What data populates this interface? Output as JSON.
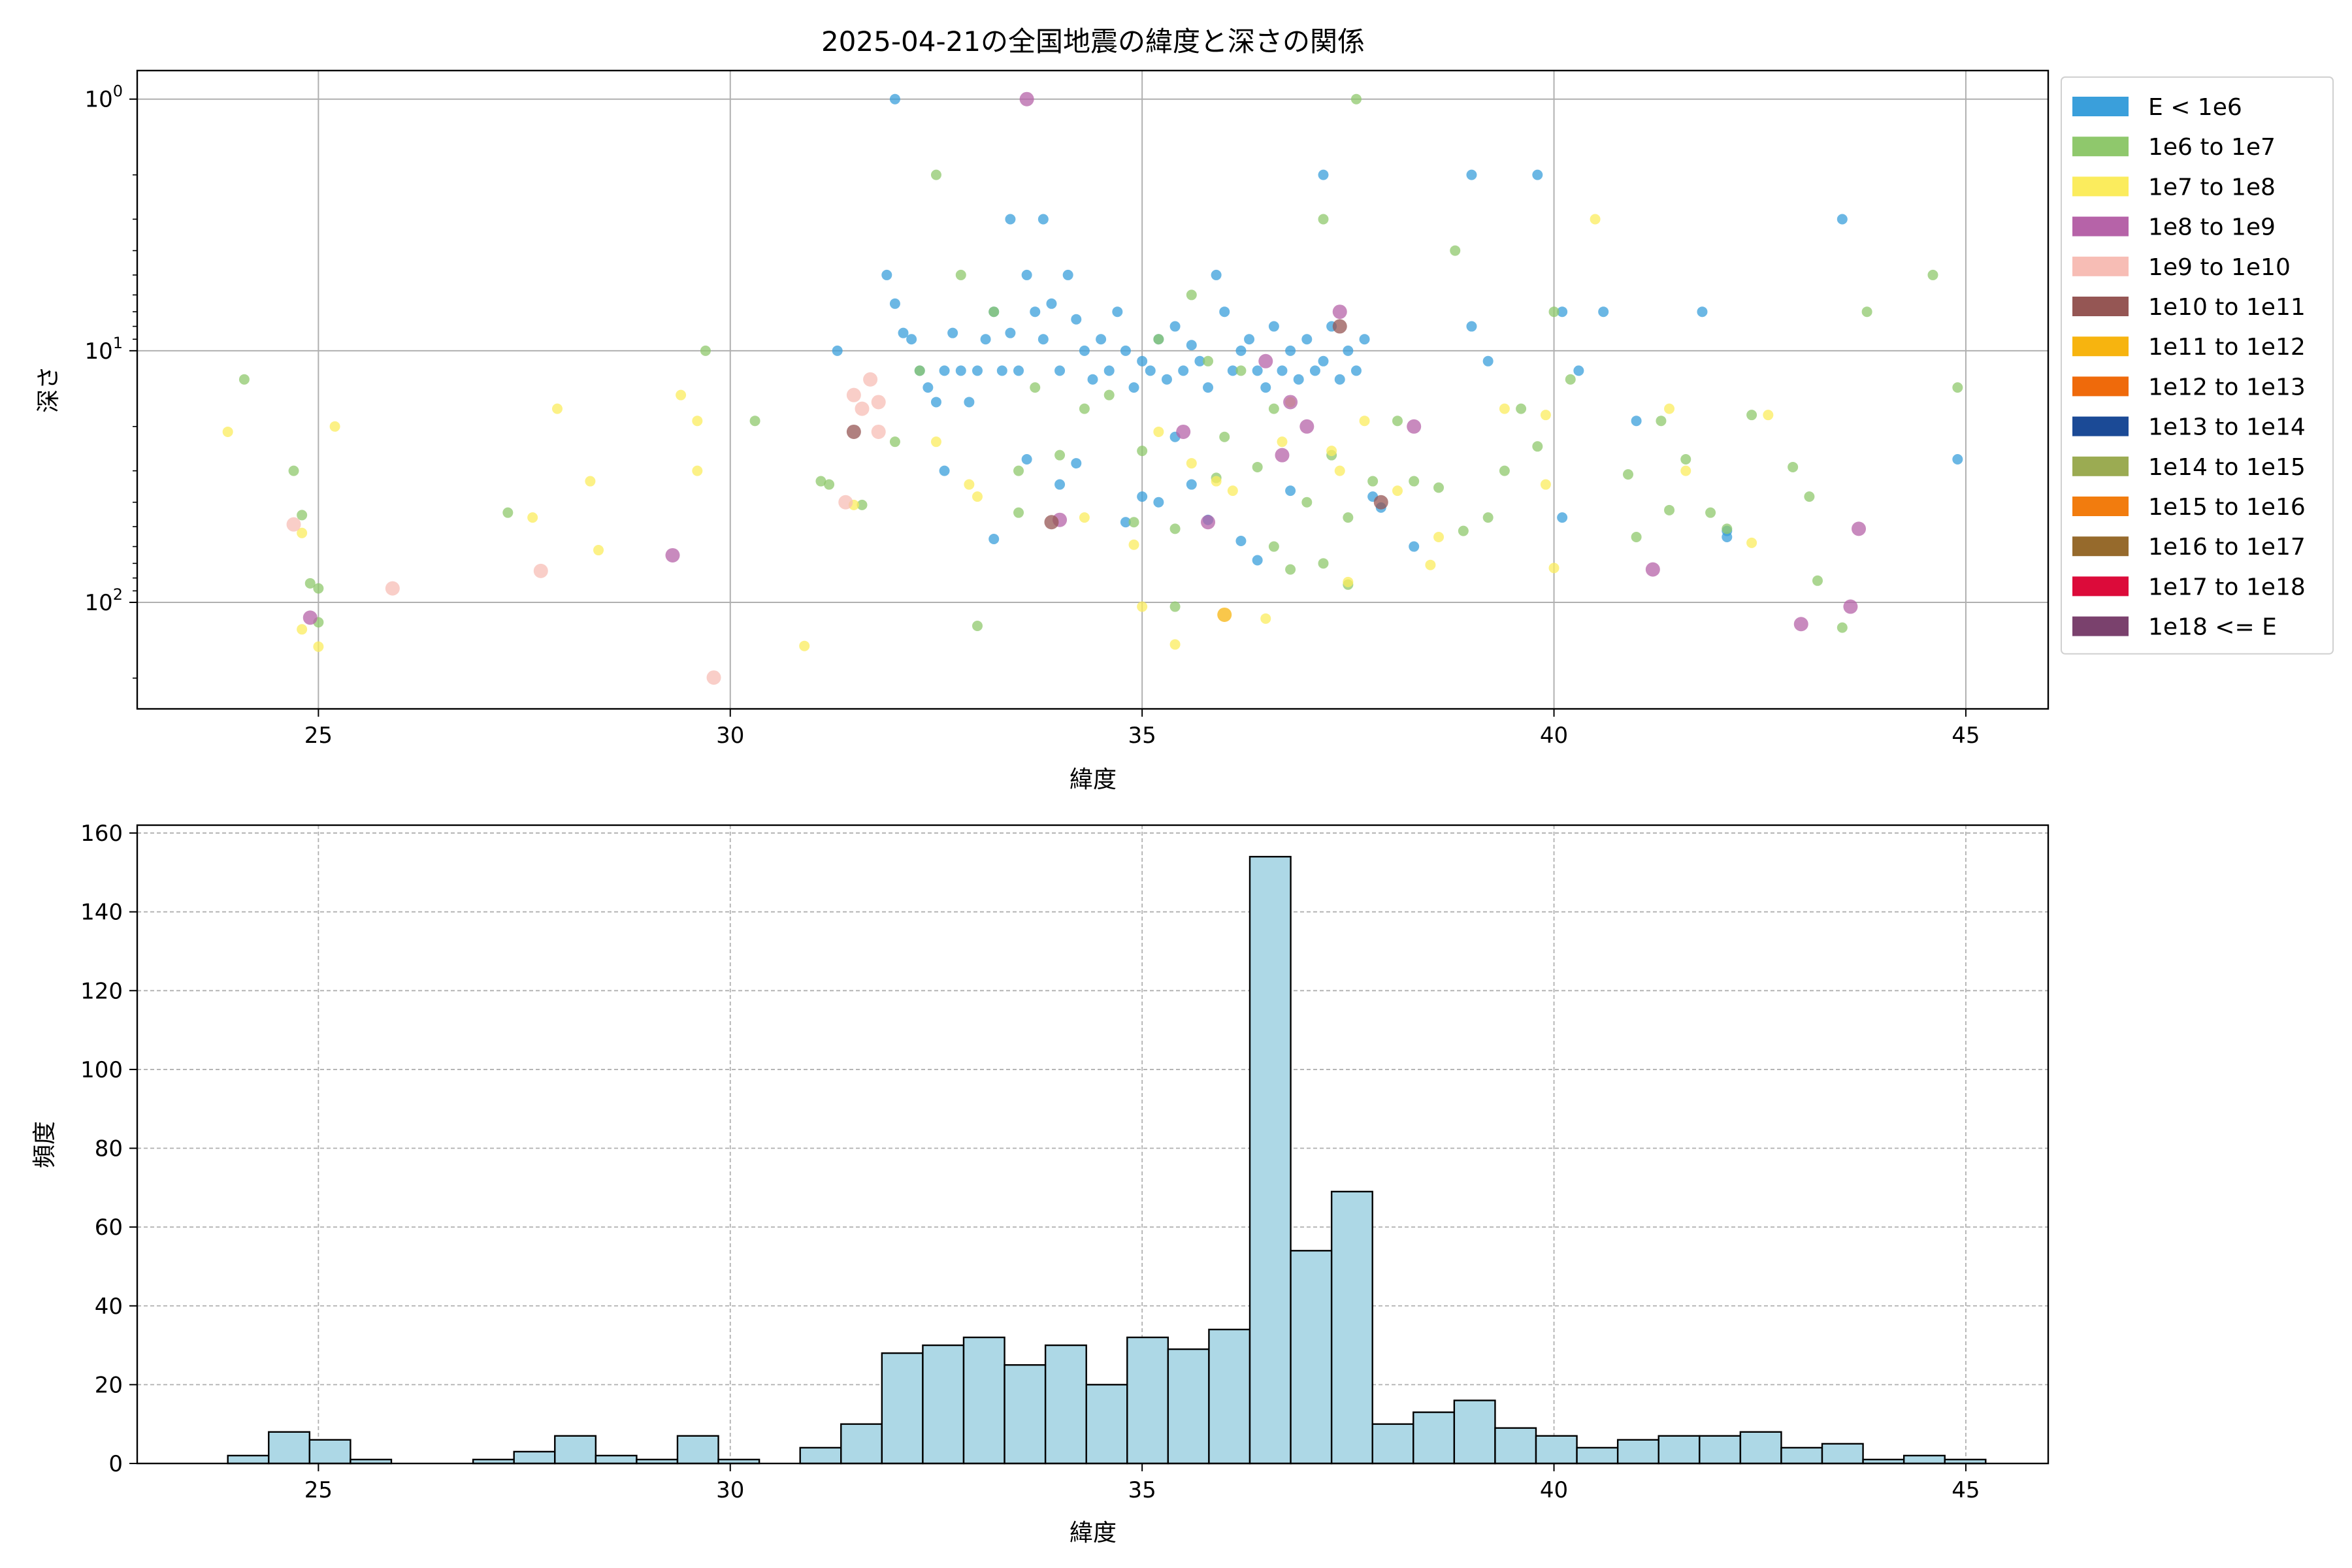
{
  "chart_data": [
    {
      "type": "scatter",
      "title": "2025-04-21の全国地震の緯度と深さの関係",
      "xlabel": "緯度",
      "ylabel": "深さ",
      "xlim": [
        22.8,
        46.0
      ],
      "ylim": [
        265,
        0.77
      ],
      "yscale": "log",
      "y_inverted": true,
      "grid": true,
      "legend_placement": "outside-right",
      "x_ticks": [
        25,
        30,
        35,
        40,
        45
      ],
      "x_tick_labels": [
        "25",
        "30",
        "35",
        "40",
        "45"
      ],
      "y_ticks": [
        1,
        10,
        100
      ],
      "y_tick_labels": [
        "10^0",
        "10^1",
        "10^2"
      ],
      "series": [
        {
          "name": "E < 1e6",
          "color": "#3a9fdb",
          "points": [
            [
              32.0,
              1
            ],
            [
              31.3,
              10
            ],
            [
              31.9,
              5.0
            ],
            [
              32.0,
              6.5
            ],
            [
              32.1,
              8.5
            ],
            [
              32.2,
              9
            ],
            [
              32.3,
              12
            ],
            [
              32.4,
              14
            ],
            [
              32.5,
              16
            ],
            [
              32.6,
              12
            ],
            [
              32.7,
              8.5
            ],
            [
              32.8,
              12
            ],
            [
              32.9,
              16
            ],
            [
              33.0,
              12
            ],
            [
              33.1,
              9
            ],
            [
              33.2,
              7
            ],
            [
              33.3,
              12
            ],
            [
              33.4,
              8.5
            ],
            [
              33.5,
              12
            ],
            [
              33.6,
              5
            ],
            [
              33.7,
              7
            ],
            [
              33.8,
              9
            ],
            [
              33.9,
              6.5
            ],
            [
              34.0,
              12
            ],
            [
              34.1,
              5
            ],
            [
              34.2,
              7.5
            ],
            [
              34.3,
              10
            ],
            [
              34.4,
              13
            ],
            [
              34.5,
              9
            ],
            [
              34.6,
              12
            ],
            [
              34.7,
              7
            ],
            [
              34.8,
              10
            ],
            [
              34.9,
              14
            ],
            [
              35.0,
              11
            ],
            [
              35.1,
              12
            ],
            [
              35.2,
              9
            ],
            [
              35.3,
              13
            ],
            [
              35.4,
              8
            ],
            [
              35.5,
              12
            ],
            [
              35.6,
              9.5
            ],
            [
              35.7,
              11
            ],
            [
              35.8,
              14
            ],
            [
              35.9,
              5
            ],
            [
              36.0,
              7
            ],
            [
              36.1,
              12
            ],
            [
              36.2,
              10
            ],
            [
              36.3,
              9
            ],
            [
              36.4,
              12
            ],
            [
              36.5,
              14
            ],
            [
              36.6,
              8
            ],
            [
              36.7,
              12
            ],
            [
              36.8,
              10
            ],
            [
              36.9,
              13
            ],
            [
              37.0,
              9
            ],
            [
              37.1,
              12
            ],
            [
              37.2,
              11
            ],
            [
              37.3,
              8
            ],
            [
              37.4,
              13
            ],
            [
              37.5,
              10
            ],
            [
              37.6,
              12
            ],
            [
              37.7,
              9
            ],
            [
              37.8,
              38
            ],
            [
              37.9,
              42
            ],
            [
              38.3,
              60
            ],
            [
              39.0,
              2
            ],
            [
              39.0,
              8
            ],
            [
              39.2,
              11
            ],
            [
              39.8,
              2
            ],
            [
              40.1,
              7
            ],
            [
              40.1,
              46
            ],
            [
              40.3,
              12
            ],
            [
              40.6,
              7
            ],
            [
              41.0,
              19
            ],
            [
              41.8,
              7
            ],
            [
              42.1,
              52
            ],
            [
              42.1,
              55
            ],
            [
              43.5,
              3
            ],
            [
              44.9,
              27
            ],
            [
              32.6,
              30
            ],
            [
              33.2,
              56
            ],
            [
              33.4,
              3
            ],
            [
              33.8,
              3
            ],
            [
              34.0,
              34
            ],
            [
              34.2,
              28
            ],
            [
              35.0,
              38
            ],
            [
              35.2,
              40
            ],
            [
              35.4,
              22
            ],
            [
              35.8,
              47
            ],
            [
              36.2,
              57
            ],
            [
              36.4,
              68
            ],
            [
              36.8,
              36
            ],
            [
              37.2,
              2
            ],
            [
              33.6,
              27
            ],
            [
              34.8,
              48
            ],
            [
              35.6,
              34
            ]
          ]
        },
        {
          "name": "1e6 to 1e7",
          "color": "#8fc86c",
          "points": [
            [
              24.1,
              13
            ],
            [
              24.7,
              30
            ],
            [
              24.8,
              45
            ],
            [
              24.9,
              84
            ],
            [
              25.0,
              88
            ],
            [
              25.0,
              120
            ],
            [
              29.7,
              10
            ],
            [
              30.3,
              19
            ],
            [
              31.1,
              33
            ],
            [
              31.2,
              34
            ],
            [
              31.6,
              41
            ],
            [
              32.0,
              23
            ],
            [
              32.3,
              12
            ],
            [
              32.5,
              2
            ],
            [
              32.8,
              5
            ],
            [
              33.0,
              124
            ],
            [
              33.2,
              7
            ],
            [
              33.5,
              30
            ],
            [
              33.7,
              14
            ],
            [
              34.0,
              26
            ],
            [
              34.3,
              17
            ],
            [
              34.6,
              15
            ],
            [
              34.9,
              48
            ],
            [
              35.0,
              25
            ],
            [
              35.2,
              9
            ],
            [
              35.4,
              51
            ],
            [
              35.6,
              6
            ],
            [
              35.8,
              11
            ],
            [
              36.0,
              22
            ],
            [
              36.2,
              12
            ],
            [
              36.4,
              29
            ],
            [
              36.6,
              17
            ],
            [
              36.8,
              74
            ],
            [
              37.0,
              40
            ],
            [
              37.2,
              3
            ],
            [
              37.3,
              26
            ],
            [
              37.5,
              46
            ],
            [
              37.5,
              85
            ],
            [
              37.6,
              1
            ],
            [
              37.8,
              33
            ],
            [
              38.1,
              19
            ],
            [
              38.3,
              33
            ],
            [
              38.6,
              35
            ],
            [
              38.8,
              4
            ],
            [
              38.9,
              52
            ],
            [
              39.2,
              46
            ],
            [
              39.4,
              30
            ],
            [
              39.6,
              17
            ],
            [
              39.8,
              24
            ],
            [
              40.0,
              7
            ],
            [
              40.2,
              13
            ],
            [
              40.9,
              31
            ],
            [
              41.0,
              55
            ],
            [
              41.3,
              19
            ],
            [
              41.4,
              43
            ],
            [
              41.6,
              27
            ],
            [
              41.9,
              44
            ],
            [
              42.1,
              51
            ],
            [
              42.4,
              18
            ],
            [
              42.9,
              29
            ],
            [
              43.1,
              38
            ],
            [
              43.2,
              82
            ],
            [
              43.5,
              126
            ],
            [
              43.8,
              7
            ],
            [
              44.6,
              5
            ],
            [
              44.9,
              14
            ],
            [
              27.3,
              44
            ],
            [
              33.5,
              44
            ],
            [
              35.4,
              104
            ],
            [
              35.9,
              32
            ],
            [
              36.6,
              60
            ],
            [
              37.2,
              70
            ]
          ]
        },
        {
          "name": "1e7 to 1e8",
          "color": "#fbec5d",
          "points": [
            [
              23.9,
              21
            ],
            [
              24.8,
              53
            ],
            [
              24.8,
              128
            ],
            [
              25.0,
              150
            ],
            [
              25.2,
              20
            ],
            [
              27.6,
              46
            ],
            [
              27.9,
              17
            ],
            [
              28.3,
              33
            ],
            [
              28.4,
              62
            ],
            [
              29.4,
              15
            ],
            [
              29.6,
              30
            ],
            [
              29.6,
              19
            ],
            [
              30.9,
              149
            ],
            [
              31.5,
              41
            ],
            [
              32.5,
              23
            ],
            [
              32.9,
              34
            ],
            [
              33.0,
              38
            ],
            [
              34.3,
              46
            ],
            [
              34.9,
              59
            ],
            [
              35.0,
              104
            ],
            [
              35.4,
              147
            ],
            [
              35.6,
              28
            ],
            [
              35.9,
              33
            ],
            [
              36.1,
              36
            ],
            [
              36.5,
              116
            ],
            [
              36.7,
              23
            ],
            [
              36.8,
              16
            ],
            [
              37.3,
              25
            ],
            [
              37.5,
              83
            ],
            [
              37.7,
              19
            ],
            [
              38.1,
              36
            ],
            [
              38.5,
              71
            ],
            [
              38.6,
              55
            ],
            [
              39.4,
              17
            ],
            [
              39.9,
              34
            ],
            [
              39.9,
              18
            ],
            [
              40.0,
              73
            ],
            [
              40.5,
              3
            ],
            [
              41.4,
              17
            ],
            [
              41.6,
              30
            ],
            [
              42.4,
              58
            ],
            [
              42.6,
              18
            ],
            [
              37.4,
              30
            ],
            [
              35.2,
              21
            ]
          ]
        },
        {
          "name": "1e8 to 1e9",
          "color": "#b663a8",
          "points": [
            [
              24.9,
              115
            ],
            [
              29.3,
              65
            ],
            [
              33.6,
              1
            ],
            [
              34.0,
              47
            ],
            [
              35.5,
              21
            ],
            [
              35.8,
              48
            ],
            [
              36.5,
              11
            ],
            [
              36.7,
              26
            ],
            [
              36.8,
              16
            ],
            [
              37.0,
              20
            ],
            [
              37.4,
              7
            ],
            [
              38.3,
              20
            ],
            [
              41.2,
              74
            ],
            [
              43.0,
              122
            ],
            [
              43.6,
              104
            ],
            [
              43.7,
              51
            ]
          ]
        },
        {
          "name": "1e9 to 1e10",
          "color": "#f7bdb5",
          "points": [
            [
              24.7,
              49
            ],
            [
              25.9,
              88
            ],
            [
              27.7,
              75
            ],
            [
              29.8,
              199
            ],
            [
              31.4,
              40
            ],
            [
              31.5,
              15
            ],
            [
              31.6,
              17
            ],
            [
              31.7,
              13
            ],
            [
              31.8,
              21
            ],
            [
              31.8,
              16
            ]
          ]
        },
        {
          "name": "1e10 to 1e11",
          "color": "#955654",
          "points": [
            [
              31.5,
              21
            ],
            [
              33.9,
              48
            ],
            [
              37.4,
              8
            ],
            [
              37.9,
              40
            ]
          ]
        },
        {
          "name": "1e11 to 1e12",
          "color": "#f7b40f",
          "points": [
            [
              36.0,
              112
            ]
          ]
        },
        {
          "name": "1e12 to 1e13",
          "color": "#ef6a0b",
          "points": []
        },
        {
          "name": "1e13 to 1e14",
          "color": "#1b4a96",
          "points": []
        },
        {
          "name": "1e14 to 1e15",
          "color": "#9bab52",
          "points": []
        },
        {
          "name": "1e15 to 1e16",
          "color": "#f27c0e",
          "points": []
        },
        {
          "name": "1e16 to 1e17",
          "color": "#966a2c",
          "points": []
        },
        {
          "name": "1e17 to 1e18",
          "color": "#dc0b3a",
          "points": []
        },
        {
          "name": "1e18 <= E",
          "color": "#7a416d",
          "points": []
        }
      ]
    },
    {
      "type": "bar",
      "title": "",
      "xlabel": "緯度",
      "ylabel": "頻度",
      "xlim": [
        22.8,
        46.0
      ],
      "ylim": [
        0,
        162
      ],
      "grid": true,
      "grid_style": "dashed",
      "bar_color": "#add8e6",
      "bar_edge": "#000000",
      "x_ticks": [
        25,
        30,
        35,
        40,
        45
      ],
      "x_tick_labels": [
        "25",
        "30",
        "35",
        "40",
        "45"
      ],
      "y_ticks": [
        0,
        20,
        40,
        60,
        80,
        100,
        120,
        140,
        160
      ],
      "y_tick_labels": [
        "0",
        "20",
        "40",
        "60",
        "80",
        "100",
        "120",
        "140",
        "160"
      ],
      "bin_start": 23.9,
      "bin_width": 0.4963,
      "values": [
        2,
        8,
        6,
        1,
        0,
        0,
        1,
        3,
        7,
        2,
        1,
        7,
        1,
        0,
        4,
        10,
        28,
        30,
        32,
        25,
        30,
        20,
        32,
        29,
        34,
        154,
        54,
        69,
        10,
        13,
        16,
        9,
        7,
        4,
        6,
        7,
        7,
        8,
        4,
        5,
        1,
        2,
        1
      ]
    }
  ]
}
